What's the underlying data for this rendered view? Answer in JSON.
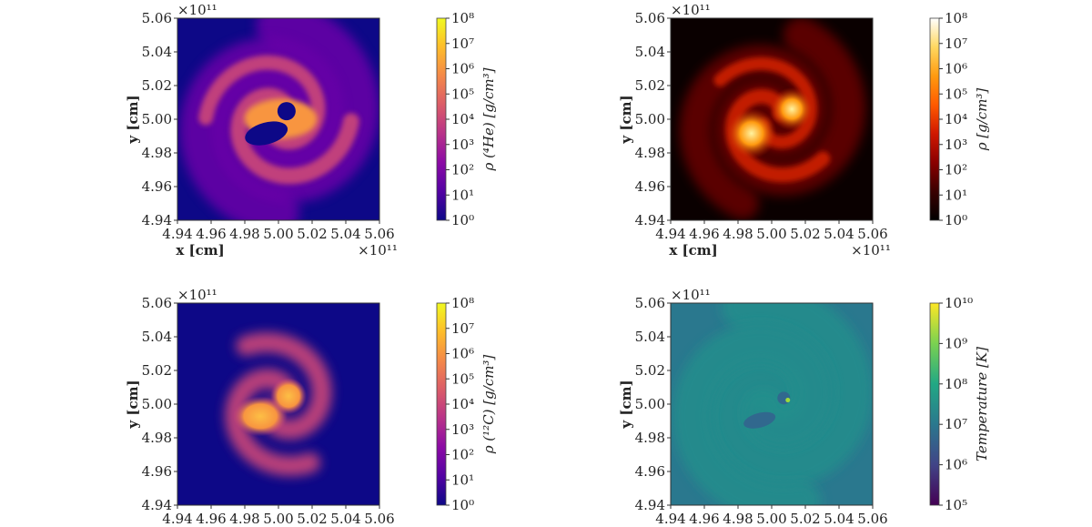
{
  "chart_data": [
    {
      "type": "heatmap",
      "quantity": "rho(4He)",
      "colorbar_label": "ρ (⁴He) [g/cm³]",
      "colormap": "plasma",
      "colorbar_ticks": [
        "10⁰",
        "10¹",
        "10²",
        "10³",
        "10⁴",
        "10⁵",
        "10⁶",
        "10⁷",
        "10⁸"
      ],
      "clim_log10": [
        0,
        8
      ],
      "xlabel": "x [cm]",
      "ylabel": "y [cm]",
      "x_ticks": [
        "4.94",
        "4.96",
        "4.98",
        "5.00",
        "5.02",
        "5.04",
        "5.06"
      ],
      "y_ticks": [
        "4.94",
        "4.96",
        "4.98",
        "5.00",
        "5.02",
        "5.04",
        "5.06"
      ],
      "xlim": [
        4.94,
        5.06
      ],
      "ylim": [
        4.94,
        5.06
      ],
      "offset_label": "×10¹¹",
      "x_offset_label": "×10¹¹",
      "colors": {
        "background": "#0d0887",
        "low": "#6a00a8",
        "mid": "#cc4778",
        "high": "#f89540",
        "top": "#f0f921",
        "cavity": "#0d0887"
      }
    },
    {
      "type": "heatmap",
      "quantity": "rho",
      "colorbar_label": "ρ [g/cm³]",
      "colormap": "hot",
      "colorbar_ticks": [
        "10⁰",
        "10¹",
        "10²",
        "10³",
        "10⁴",
        "10⁵",
        "10⁶",
        "10⁷",
        "10⁸"
      ],
      "clim_log10": [
        0,
        8
      ],
      "xlabel": "x [cm]",
      "ylabel": "y [cm]",
      "x_ticks": [
        "4.94",
        "4.96",
        "4.98",
        "5.00",
        "5.02",
        "5.04",
        "5.06"
      ],
      "y_ticks": [
        "4.94",
        "4.96",
        "4.98",
        "5.00",
        "5.02",
        "5.04",
        "5.06"
      ],
      "xlim": [
        4.94,
        5.06
      ],
      "ylim": [
        4.94,
        5.06
      ],
      "offset_label": "×10¹¹",
      "x_offset_label": "×10¹¹",
      "colors": {
        "background": "#0a0000",
        "low": "#5a0000",
        "mid": "#c21b00",
        "high": "#ff9a10",
        "top": "#fff3a0"
      }
    },
    {
      "type": "heatmap",
      "quantity": "rho(12C)",
      "colorbar_label": "ρ (¹²C) [g/cm³]",
      "colormap": "plasma",
      "colorbar_ticks": [
        "10⁰",
        "10¹",
        "10²",
        "10³",
        "10⁴",
        "10⁵",
        "10⁶",
        "10⁷",
        "10⁸"
      ],
      "clim_log10": [
        0,
        8
      ],
      "x_ticks": [
        "4.94",
        "4.96",
        "4.98",
        "5.00",
        "5.02",
        "5.04",
        "5.06"
      ],
      "y_ticks": [
        "4.94",
        "4.96",
        "4.98",
        "5.00",
        "5.02",
        "5.04",
        "5.06"
      ],
      "ylabel": "y [cm]",
      "xlim": [
        4.94,
        5.06
      ],
      "ylim": [
        4.94,
        5.06
      ],
      "offset_label": "×10¹¹",
      "colors": {
        "background": "#0d0887",
        "low": "#6a00a8",
        "mid": "#cc4778",
        "high": "#f89540",
        "top": "#fcbf45"
      }
    },
    {
      "type": "heatmap",
      "quantity": "Temperature",
      "colorbar_label": "Temperature [K]",
      "colormap": "viridis",
      "colorbar_ticks": [
        "10⁵",
        "10⁶",
        "10⁷",
        "10⁸",
        "10⁹",
        "10¹⁰"
      ],
      "clim_log10": [
        5,
        10
      ],
      "x_ticks": [
        "4.94",
        "4.96",
        "4.98",
        "5.00",
        "5.02",
        "5.04",
        "5.06"
      ],
      "y_ticks": [
        "4.94",
        "4.96",
        "4.98",
        "5.00",
        "5.02",
        "5.04",
        "5.06"
      ],
      "ylabel": "y [cm]",
      "xlim": [
        4.94,
        5.06
      ],
      "ylim": [
        4.94,
        5.06
      ],
      "offset_label": "×10¹¹",
      "colors": {
        "background": "#2a788e",
        "low": "#31688e",
        "mid": "#21918c",
        "high": "#35b779",
        "top": "#fde725",
        "spot": "#9fda3a"
      }
    }
  ]
}
